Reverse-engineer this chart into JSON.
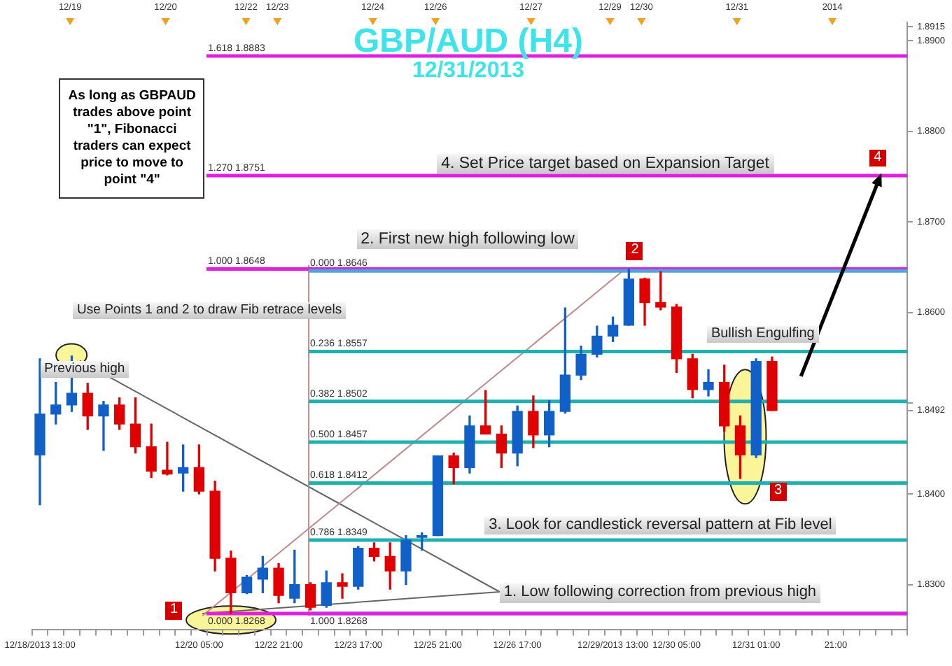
{
  "chart_data": {
    "type": "candlestick",
    "title": "GBP/AUD (H4)",
    "subtitle": "12/31/2013",
    "categories": [
      "12/18/2013 13:00",
      null,
      null,
      null,
      null,
      null,
      null,
      null,
      null,
      null,
      "12/20 05:00",
      null,
      null,
      null,
      null,
      "12/22 21:00",
      null,
      null,
      null,
      null,
      "12/23 17:00",
      null,
      null,
      null,
      null,
      "12/25 21:00",
      null,
      null,
      null,
      null,
      "12/26 17:00",
      null,
      null,
      null,
      null,
      null,
      "12/29/2013 13:00",
      null,
      null,
      null,
      "12/30 05:00",
      null,
      null,
      null,
      null,
      "12/31 01:00",
      null,
      null,
      null,
      null,
      "21:00",
      null,
      null,
      null,
      null
    ],
    "ohlc": [
      [
        1.8443,
        1.8549,
        1.8388,
        1.8488
      ],
      [
        1.8488,
        1.8523,
        1.8477,
        1.8498
      ],
      [
        1.8498,
        1.8552,
        1.8491,
        1.8511
      ],
      [
        1.8511,
        1.8522,
        1.8471,
        1.8486
      ],
      [
        1.8486,
        1.8502,
        1.8448,
        1.8498
      ],
      [
        1.8498,
        1.8506,
        1.8471,
        1.8477
      ],
      [
        1.8477,
        1.8506,
        1.8445,
        1.8452
      ],
      [
        1.8452,
        1.8477,
        1.8418,
        1.8425
      ],
      [
        1.8426,
        1.8457,
        1.8421,
        1.8422
      ],
      [
        1.8423,
        1.8454,
        1.8403,
        1.8429
      ],
      [
        1.8429,
        1.8454,
        1.84,
        1.8403
      ],
      [
        1.8403,
        1.8414,
        1.8315,
        1.8329
      ],
      [
        1.8329,
        1.8337,
        1.8268,
        1.8291
      ],
      [
        1.8291,
        1.831,
        1.829,
        1.8308
      ],
      [
        1.8306,
        1.8331,
        1.8291,
        1.8318
      ],
      [
        1.8318,
        1.8323,
        1.828,
        1.8288
      ],
      [
        1.8285,
        1.8338,
        1.828,
        1.83
      ],
      [
        1.83,
        1.8302,
        1.8272,
        1.8275
      ],
      [
        1.8277,
        1.8315,
        1.8275,
        1.8302
      ],
      [
        1.8302,
        1.8312,
        1.8285,
        1.8298
      ],
      [
        1.8298,
        1.8342,
        1.8295,
        1.834
      ],
      [
        1.834,
        1.8346,
        1.8326,
        1.8331
      ],
      [
        1.8331,
        1.8346,
        1.8295,
        1.8315
      ],
      [
        1.8315,
        1.8354,
        1.83,
        1.8349
      ],
      [
        1.8352,
        1.8357,
        1.8338,
        1.8354
      ],
      [
        1.8354,
        1.8442,
        1.8354,
        1.8442
      ],
      [
        1.8442,
        1.8445,
        1.8411,
        1.8429
      ],
      [
        1.8429,
        1.8486,
        1.8423,
        1.8475
      ],
      [
        1.8475,
        1.8514,
        1.8466,
        1.8466
      ],
      [
        1.8466,
        1.8475,
        1.8429,
        1.8445
      ],
      [
        1.8445,
        1.8497,
        1.8431,
        1.8491
      ],
      [
        1.8491,
        1.8508,
        1.8451,
        1.8465
      ],
      [
        1.8465,
        1.8503,
        1.8452,
        1.8491
      ],
      [
        1.8491,
        1.8605,
        1.8489,
        1.8531
      ],
      [
        1.8531,
        1.8563,
        1.8526,
        1.8554
      ],
      [
        1.8554,
        1.8585,
        1.8551,
        1.8574
      ],
      [
        1.8574,
        1.8595,
        1.8568,
        1.8586
      ],
      [
        1.8586,
        1.8648,
        1.8586,
        1.8637
      ],
      [
        1.8637,
        1.8638,
        1.8586,
        1.8611
      ],
      [
        1.8611,
        1.8645,
        1.8603,
        1.8606
      ],
      [
        1.8606,
        1.8609,
        1.8534,
        1.8549
      ],
      [
        1.8549,
        1.8554,
        1.8506,
        1.8515
      ],
      [
        1.8515,
        1.8537,
        1.8508,
        1.8523
      ],
      [
        1.8523,
        1.8542,
        1.8469,
        1.8475
      ],
      [
        1.8475,
        1.8486,
        1.8417,
        1.8443
      ],
      [
        1.8443,
        1.8549,
        1.844,
        1.8546
      ],
      [
        1.8546,
        1.8551,
        1.8492,
        1.8492
      ],
      null,
      null,
      null,
      null,
      null,
      null,
      null,
      null
    ],
    "colors": [
      "#1060c8",
      "#1060c8",
      "#1060c8",
      "#e00000",
      "#1060c8",
      "#e00000",
      "#e00000",
      "#e00000",
      "#e00000",
      "#1060c8",
      "#e00000",
      "#e00000",
      "#e00000",
      "#1060c8",
      "#1060c8",
      "#e00000",
      "#1060c8",
      "#e00000",
      "#1060c8",
      "#e00000",
      "#1060c8",
      "#e00000",
      "#e00000",
      "#1060c8",
      "#1060c8",
      "#1060c8",
      "#e00000",
      "#1060c8",
      "#e00000",
      "#e00000",
      "#1060c8",
      "#e00000",
      "#1060c8",
      "#1060c8",
      "#1060c8",
      "#1060c8",
      "#1060c8",
      "#1060c8",
      "#e00000",
      "#e00000",
      "#e00000",
      "#e00000",
      "#1060c8",
      "#e00000",
      "#e00000",
      "#1060c8",
      "#e00000",
      null,
      null,
      null,
      null,
      null,
      null,
      null,
      null
    ],
    "ylim": [
      1.825,
      1.892
    ],
    "yticks": [
      {
        "value": 1.83,
        "label": "1.8300"
      },
      {
        "value": 1.84,
        "label": "1.8400"
      },
      {
        "value": 1.8492,
        "label": "1.8492"
      },
      {
        "value": 1.85,
        "label": null
      },
      {
        "value": 1.86,
        "label": "1.8600"
      },
      {
        "value": 1.87,
        "label": "1.8700"
      },
      {
        "value": 1.88,
        "label": "1.8800"
      },
      {
        "value": 1.89,
        "label": "1.8900"
      },
      {
        "value": 1.8915,
        "label": "1.8915"
      }
    ],
    "ref_lines": [
      {
        "axis": "y",
        "value": 1.8883,
        "label": "1.618 1.8883",
        "color": "#e020e0"
      },
      {
        "axis": "y",
        "value": 1.8751,
        "label": "1.270 1.8751",
        "color": "#e020e0"
      },
      {
        "axis": "y",
        "value": 1.8648,
        "label": "1.000 1.8648",
        "color": "#e020e0"
      },
      {
        "axis": "y",
        "value": 1.8646,
        "label": "0.000 1.8646",
        "color": "#4aa8d8"
      },
      {
        "axis": "y",
        "value": 1.8557,
        "label": "0.236 1.8557",
        "color": "#20b0b0"
      },
      {
        "axis": "y",
        "value": 1.8502,
        "label": "0.382 1.8502",
        "color": "#20b0b0"
      },
      {
        "axis": "y",
        "value": 1.8457,
        "label": "0.500 1.8457",
        "color": "#20b0b0"
      },
      {
        "axis": "y",
        "value": 1.8412,
        "label": "0.618 1.8412",
        "color": "#20b0b0"
      },
      {
        "axis": "y",
        "value": 1.8349,
        "label": "0.786 1.8349",
        "color": "#20b0b0"
      },
      {
        "axis": "y",
        "value": 1.8268,
        "label": "1.000 1.8268",
        "color": "#20b0b0"
      },
      {
        "axis": "y",
        "value": 1.8268,
        "label": "0.000 1.8268",
        "color": "#e020e0"
      }
    ],
    "annotations": [
      "As long as GBPAUD trades above point \"1\", Fibonacci traders can expect price to move to point \"4\"",
      "4. Set Price target based on Expansion Target",
      "2. First new high following low",
      "Use Points 1 and 2 to draw Fib retrace levels",
      "Previous high",
      "Bullish Engulfing",
      "3. Look for candlestick reversal pattern at Fib level",
      {
        "text": "1. Low following correction from previous high",
        "y": 1.8268
      },
      "1",
      "2",
      "3",
      "4",
      "12/19",
      "12/20",
      "12/22",
      "12/23",
      "12/24",
      "12/26",
      "12/27",
      "12/29",
      "12/30",
      "12/31",
      "2014"
    ]
  }
}
